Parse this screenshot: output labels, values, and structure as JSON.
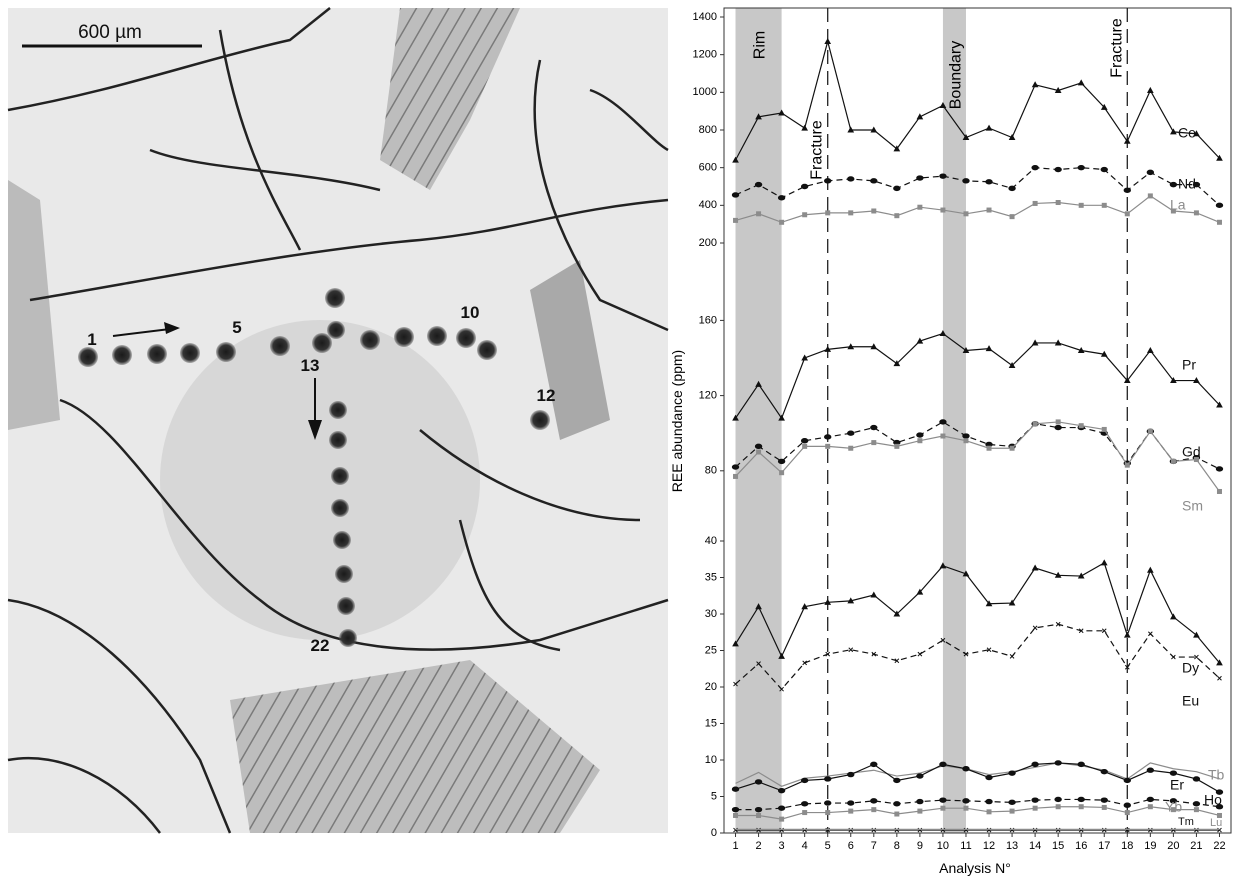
{
  "image": {
    "scale_label": "600 µm",
    "spot_labels": [
      "1",
      "5",
      "10",
      "12",
      "13",
      "22"
    ]
  },
  "chart_data": {
    "type": "line",
    "ylabel": "REE abundance (ppm)",
    "xlabel": "Analysis N°",
    "x": [
      1,
      2,
      3,
      4,
      5,
      6,
      7,
      8,
      9,
      10,
      11,
      12,
      13,
      14,
      15,
      16,
      17,
      18,
      19,
      20,
      21,
      22
    ],
    "xlim": [
      0.5,
      22.5
    ],
    "xticks": [
      1,
      2,
      3,
      4,
      5,
      6,
      7,
      8,
      9,
      10,
      11,
      12,
      13,
      14,
      15,
      16,
      17,
      18,
      19,
      20,
      21,
      22
    ],
    "bands": [
      {
        "label": "Rim",
        "from": 1,
        "to": 3,
        "color": "#c8c8c8"
      },
      {
        "label": "Boundary",
        "from": 10,
        "to": 11,
        "color": "#c8c8c8"
      }
    ],
    "vlines": [
      {
        "label": "Fracture",
        "x": 5
      },
      {
        "label": "Fracture",
        "x": 18
      }
    ],
    "panels": [
      {
        "ylim": [
          200,
          1400
        ],
        "yticks": [
          200,
          400,
          600,
          800,
          1000,
          1200,
          1400
        ],
        "series": [
          {
            "name": "Ce",
            "color": "#111111",
            "dash": false,
            "marker": "triangle",
            "values": [
              640,
              870,
              890,
              810,
              1270,
              800,
              800,
              700,
              870,
              930,
              760,
              810,
              760,
              1040,
              1010,
              1050,
              920,
              740,
              1010,
              790,
              780,
              650
            ]
          },
          {
            "name": "Nd",
            "color": "#111111",
            "dash": true,
            "marker": "dot",
            "values": [
              455,
              510,
              440,
              500,
              530,
              540,
              530,
              490,
              545,
              555,
              530,
              525,
              490,
              600,
              590,
              600,
              590,
              480,
              575,
              510,
              510,
              400
            ]
          },
          {
            "name": "La",
            "color": "#8c8c8c",
            "dash": false,
            "marker": "square",
            "values": [
              320,
              355,
              310,
              350,
              360,
              360,
              370,
              345,
              390,
              375,
              355,
              375,
              340,
              410,
              415,
              400,
              400,
              355,
              450,
              370,
              360,
              310
            ]
          }
        ]
      },
      {
        "ylim": [
          65,
          165
        ],
        "yticks": [
          80,
          120,
          160
        ],
        "series": [
          {
            "name": "Pr",
            "color": "#111111",
            "dash": false,
            "marker": "triangle",
            "values": [
              108,
              126,
              108,
              140,
              144.6,
              146,
              146,
              137,
              149,
              153,
              144,
              145,
              136,
              148,
              148,
              144,
              142,
              128,
              144,
              128,
              128,
              115
            ]
          },
          {
            "name": "Gd",
            "color": "#111111",
            "dash": true,
            "marker": "dot",
            "values": [
              82,
              93,
              85,
              96,
              98,
              100,
              103,
              95,
              99,
              106,
              98.5,
              94,
              93,
              105,
              103,
              103,
              100,
              84,
              101,
              85,
              87,
              81
            ]
          },
          {
            "name": "Sm",
            "color": "#8c8c8c",
            "dash": false,
            "marker": "square",
            "values": [
              77,
              90,
              79,
              93,
              93,
              92,
              95,
              93,
              96,
              98.5,
              96,
              92,
              92,
              105,
              106,
              104,
              102,
              83,
              101,
              85,
              86,
              69
            ]
          }
        ]
      },
      {
        "ylim": [
          0,
          40
        ],
        "yticks": [
          0,
          5,
          10,
          15,
          20,
          25,
          30,
          35,
          40
        ],
        "series": [
          {
            "name": "Dy",
            "color": "#111111",
            "dash": false,
            "marker": "triangle",
            "values": [
              25.9,
              31,
              24.2,
              31,
              31.6,
              31.8,
              32.6,
              30,
              33,
              36.6,
              35.5,
              31.4,
              31.5,
              36.3,
              35.3,
              35.2,
              37,
              27.1,
              36,
              29.6,
              27.1,
              23.3
            ]
          },
          {
            "name": "Eu",
            "color": "#111111",
            "dash": true,
            "marker": "cross",
            "values": [
              20.4,
              23.2,
              19.7,
              23.3,
              24.5,
              25.1,
              24.5,
              23.6,
              24.5,
              26.4,
              24.5,
              25.1,
              24.2,
              28.1,
              28.6,
              27.7,
              27.7,
              22.7,
              27.3,
              24.1,
              24.1,
              21.2
            ]
          },
          {
            "name": "Tb",
            "color": "#8c8c8c",
            "dash": false,
            "marker": "none",
            "values": [
              6.8,
              8.3,
              6.4,
              7.5,
              7.8,
              8.2,
              8.6,
              7.8,
              8.2,
              9.2,
              8.8,
              8,
              8.4,
              9,
              9.6,
              9.2,
              8.6,
              7.4,
              9.6,
              8.8,
              8.4,
              7.4
            ]
          },
          {
            "name": "Er",
            "color": "#111111",
            "dash": false,
            "marker": "dot",
            "values": [
              6,
              7,
              5.8,
              7.2,
              7.4,
              8,
              9.4,
              7.2,
              7.8,
              9.4,
              8.8,
              7.6,
              8.2,
              9.4,
              9.6,
              9.4,
              8.4,
              7.2,
              8.6,
              8.2,
              7.4,
              5.6
            ]
          },
          {
            "name": "Ho",
            "color": "#111111",
            "dash": true,
            "marker": "dot",
            "values": [
              3.2,
              3.2,
              3.4,
              4,
              4.1,
              4.1,
              4.4,
              4,
              4.3,
              4.5,
              4.4,
              4.3,
              4.2,
              4.5,
              4.6,
              4.6,
              4.5,
              3.8,
              4.6,
              4.4,
              4,
              3.6
            ]
          },
          {
            "name": "Yb",
            "color": "#8c8c8c",
            "dash": false,
            "marker": "square",
            "values": [
              2.4,
              2.4,
              1.9,
              2.8,
              2.8,
              3,
              3.2,
              2.6,
              3,
              3.4,
              3.4,
              2.9,
              3,
              3.4,
              3.6,
              3.6,
              3.5,
              2.8,
              3.6,
              3.2,
              3.2,
              2.4
            ]
          },
          {
            "name": "Tm",
            "color": "#111111",
            "dash": false,
            "marker": "cross",
            "values": [
              0.4,
              0.4,
              0.4,
              0.4,
              0.4,
              0.4,
              0.4,
              0.4,
              0.4,
              0.4,
              0.4,
              0.4,
              0.4,
              0.4,
              0.4,
              0.4,
              0.4,
              0.4,
              0.4,
              0.4,
              0.4,
              0.4
            ]
          },
          {
            "name": "Lu",
            "color": "#8c8c8c",
            "dash": false,
            "marker": "none",
            "values": [
              0.5,
              0.5,
              0.5,
              0.5,
              0.5,
              0.5,
              0.5,
              0.5,
              0.5,
              0.5,
              0.5,
              0.5,
              0.5,
              0.5,
              0.5,
              0.5,
              0.5,
              0.5,
              0.5,
              0.5,
              0.5,
              0.5
            ]
          }
        ]
      }
    ]
  }
}
